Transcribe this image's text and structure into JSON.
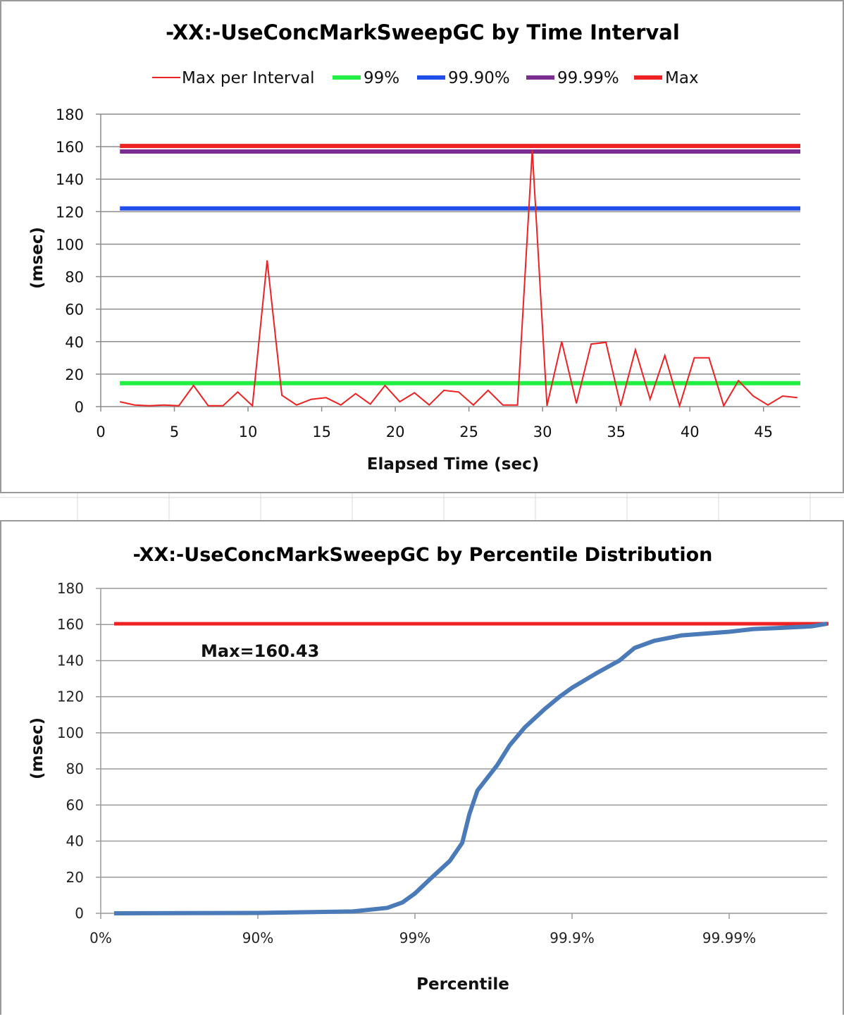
{
  "chart_data": [
    {
      "type": "line",
      "title": "-XX:-UseConcMarkSweepGC by Time Interval",
      "xlabel": "Elapsed Time (sec)",
      "ylabel": "(msec)",
      "xlim": [
        0,
        47.5
      ],
      "ylim": [
        0,
        180
      ],
      "x_ticks": [
        "0",
        "5",
        "10",
        "15",
        "20",
        "25",
        "30",
        "35",
        "40",
        "45"
      ],
      "y_ticks": [
        "0",
        "20",
        "40",
        "60",
        "80",
        "100",
        "120",
        "140",
        "160",
        "180"
      ],
      "grid": "horizontal",
      "legend": "top",
      "series": [
        {
          "name": "Max per Interval",
          "color": "#ee2222",
          "x": [
            1.3,
            2.3,
            3.3,
            4.3,
            5.3,
            6.3,
            7.3,
            8.3,
            9.3,
            10.3,
            11.3,
            12.3,
            13.3,
            14.3,
            15.3,
            16.3,
            17.3,
            18.3,
            19.3,
            20.3,
            21.3,
            22.3,
            23.3,
            24.3,
            25.3,
            26.3,
            27.3,
            28.3,
            29.3,
            30.3,
            31.3,
            32.3,
            33.3,
            34.3,
            35.3,
            36.3,
            37.3,
            38.3,
            39.3,
            40.3,
            41.3,
            42.3,
            43.3,
            44.3,
            45.3,
            46.3,
            47.3
          ],
          "values": [
            3,
            1,
            0.5,
            1,
            0.5,
            13,
            0.5,
            0.5,
            9,
            0.5,
            90,
            7,
            1,
            4.5,
            5.5,
            1,
            8,
            1.5,
            13,
            3,
            8.5,
            1,
            10,
            9,
            1,
            10,
            1,
            1,
            158,
            0.5,
            40,
            2,
            38.5,
            39.5,
            0.5,
            35,
            4.5,
            31.5,
            0.5,
            30,
            30,
            0.5,
            16,
            6.5,
            1,
            6.5,
            5.5
          ]
        },
        {
          "name": "99%",
          "color": "#22ee44",
          "x": [
            1.3,
            47.5
          ],
          "values": [
            14.4,
            14.4
          ]
        },
        {
          "name": "99.90%",
          "color": "#1f4fe8",
          "x": [
            1.3,
            47.5
          ],
          "values": [
            122,
            122
          ]
        },
        {
          "name": "99.99%",
          "color": "#7a2e92",
          "x": [
            1.3,
            47.5
          ],
          "values": [
            157,
            157
          ]
        },
        {
          "name": "Max",
          "color": "#ee2222",
          "x": [
            1.3,
            47.5
          ],
          "values": [
            160.43,
            160.43
          ]
        }
      ]
    },
    {
      "type": "line",
      "title": "-XX:-UseConcMarkSweepGC by Percentile Distribution",
      "xlabel": "Percentile",
      "ylabel": "(msec)",
      "x_scale": "log-percentile",
      "x_ticks": [
        "0%",
        "90%",
        "99%",
        "99.9%",
        "99.99%"
      ],
      "y_ticks": [
        "0",
        "20",
        "40",
        "60",
        "80",
        "100",
        "120",
        "140",
        "160",
        "180"
      ],
      "ylim": [
        0,
        180
      ],
      "grid": "horizontal",
      "annotation": "Max=160.43",
      "series": [
        {
          "name": "",
          "color": "#4a7ab8",
          "x": [
            "0.1%",
            "90%",
            "97.5%",
            "98.5%",
            "98.8%",
            "99%",
            "99.2%",
            "99.4%",
            "99.5%",
            "99.55%",
            "99.6%",
            "99.7%",
            "99.75%",
            "99.8%",
            "99.85%",
            "99.88%",
            "99.9%",
            "99.93%",
            "99.95%",
            "99.96%",
            "99.97%",
            "99.98%",
            "99.99%",
            "99.993%",
            "99.995%",
            "99.997%",
            "99.998%"
          ],
          "values": [
            0,
            0.2,
            1,
            3,
            6,
            11,
            19,
            29,
            39,
            55,
            68,
            82,
            93,
            103,
            113,
            120,
            125,
            133,
            140,
            147,
            151,
            154,
            156,
            157.5,
            158,
            159,
            160.43
          ]
        },
        {
          "name": "",
          "color": "#ee2222",
          "x": [
            "0.1%",
            "99.998%"
          ],
          "values": [
            160.43,
            160.43
          ]
        }
      ]
    }
  ]
}
